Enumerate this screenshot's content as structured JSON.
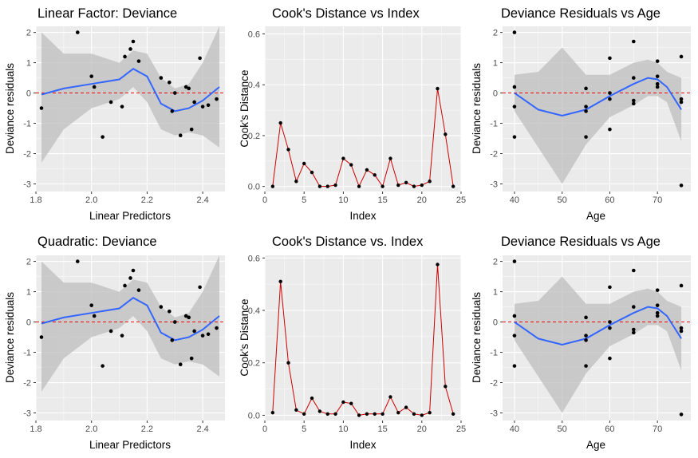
{
  "chart_data": [
    {
      "type": "scatter",
      "title": "Linear Factor: Deviance",
      "xlabel": "Linear Predictors",
      "ylabel": "Deviance residuals",
      "xlim": [
        1.8,
        2.48
      ],
      "ylim": [
        -3.25,
        2.2
      ],
      "xticks": [
        1.8,
        2.0,
        2.2,
        2.4
      ],
      "xticklabels": [
        "1.8",
        "2.0",
        "2.2",
        "2.4"
      ],
      "yticks": [
        -3,
        -2,
        -1,
        0,
        1,
        2
      ],
      "yticklabels": [
        "-3",
        "-2",
        "-1",
        "0",
        "1",
        "2"
      ],
      "points": {
        "x": [
          1.82,
          1.95,
          2.0,
          2.01,
          2.04,
          2.07,
          2.11,
          2.12,
          2.14,
          2.15,
          2.17,
          2.25,
          2.28,
          2.29,
          2.3,
          2.32,
          2.34,
          2.35,
          2.36,
          2.37,
          2.39,
          2.4,
          2.42,
          2.45
        ],
        "y": [
          -0.5,
          2.0,
          0.55,
          0.2,
          -1.45,
          -0.3,
          -0.45,
          1.2,
          1.45,
          1.7,
          1.05,
          0.5,
          0.35,
          -0.6,
          0.0,
          -1.4,
          0.2,
          0.15,
          -1.2,
          -0.3,
          1.15,
          -0.45,
          -0.4,
          -0.2
        ]
      },
      "smooth": {
        "x": [
          1.82,
          1.9,
          2.0,
          2.1,
          2.15,
          2.2,
          2.25,
          2.3,
          2.35,
          2.4,
          2.46
        ],
        "y": [
          -0.05,
          0.15,
          0.3,
          0.45,
          0.8,
          0.55,
          -0.35,
          -0.6,
          -0.5,
          -0.25,
          0.2
        ],
        "lower": [
          -2.3,
          -1.2,
          -0.5,
          -0.2,
          0.2,
          -0.3,
          -1.2,
          -1.4,
          -1.3,
          -1.4,
          -1.8
        ],
        "upper": [
          2.0,
          1.3,
          1.3,
          1.0,
          1.4,
          1.3,
          0.5,
          0.15,
          0.3,
          1.0,
          2.2
        ]
      },
      "hline": 0
    },
    {
      "type": "line",
      "title": "Cook's Distance vs Index",
      "xlabel": "Index",
      "ylabel": "Cook's Distance",
      "xlim": [
        0,
        25
      ],
      "ylim": [
        -0.02,
        0.63
      ],
      "xticks": [
        0,
        5,
        10,
        15,
        20,
        25
      ],
      "xticklabels": [
        "0",
        "5",
        "10",
        "15",
        "20",
        "25"
      ],
      "yticks": [
        0,
        0.2,
        0.4,
        0.6
      ],
      "yticklabels": [
        "0.0",
        "0.2",
        "0.4",
        "0.6"
      ],
      "x": [
        1,
        2,
        3,
        4,
        5,
        6,
        7,
        8,
        9,
        10,
        11,
        12,
        13,
        14,
        15,
        16,
        17,
        18,
        19,
        20,
        21,
        22,
        23,
        24
      ],
      "y": [
        0.0,
        0.25,
        0.145,
        0.02,
        0.09,
        0.055,
        0.0,
        0.0,
        0.005,
        0.11,
        0.085,
        0.0,
        0.065,
        0.045,
        0.0,
        0.11,
        0.005,
        0.015,
        0.0,
        0.005,
        0.02,
        0.385,
        0.205,
        0.0
      ]
    },
    {
      "type": "scatter",
      "title": "Deviance Residuals vs Age",
      "xlabel": "Age",
      "ylabel": "Deviance residuals",
      "xlim": [
        37.5,
        77
      ],
      "ylim": [
        -3.25,
        2.2
      ],
      "xticks": [
        40,
        50,
        60,
        70
      ],
      "xticklabels": [
        "40",
        "50",
        "60",
        "70"
      ],
      "yticks": [
        -3,
        -2,
        -1,
        0,
        1,
        2
      ],
      "yticklabels": [
        "-3",
        "-2",
        "-1",
        "0",
        "1",
        "2"
      ],
      "points": {
        "x": [
          40,
          40,
          40,
          40,
          55,
          55,
          55,
          55,
          60,
          60,
          60,
          60,
          65,
          65,
          65,
          65,
          70,
          70,
          70,
          70,
          75,
          75,
          75,
          75
        ],
        "y": [
          2.0,
          0.2,
          -0.45,
          -1.45,
          0.15,
          -0.45,
          -0.6,
          -1.45,
          1.15,
          0.0,
          -0.2,
          -1.2,
          1.7,
          0.5,
          -0.25,
          -0.35,
          1.05,
          0.55,
          0.3,
          0.2,
          1.2,
          -0.2,
          -0.3,
          -3.05
        ]
      },
      "smooth": {
        "x": [
          40,
          45,
          50,
          55,
          60,
          65,
          68,
          70,
          72,
          75
        ],
        "y": [
          0.0,
          -0.55,
          -0.75,
          -0.55,
          -0.1,
          0.3,
          0.5,
          0.45,
          0.2,
          -0.55
        ],
        "lower": [
          -0.6,
          -1.8,
          -3.0,
          -1.7,
          -0.8,
          -0.4,
          -0.1,
          -0.1,
          -0.3,
          -1.6
        ],
        "upper": [
          0.6,
          0.7,
          1.5,
          0.6,
          0.6,
          1.0,
          1.1,
          1.0,
          0.7,
          0.5
        ]
      },
      "hline": 0
    },
    {
      "type": "scatter",
      "title": "Quadratic: Deviance",
      "xlabel": "Linear Predictors",
      "ylabel": "Deviance residuals",
      "xlim": [
        1.8,
        2.48
      ],
      "ylim": [
        -3.25,
        2.2
      ],
      "xticks": [
        1.8,
        2.0,
        2.2,
        2.4
      ],
      "xticklabels": [
        "1.8",
        "2.0",
        "2.2",
        "2.4"
      ],
      "yticks": [
        -3,
        -2,
        -1,
        0,
        1,
        2
      ],
      "yticklabels": [
        "-3",
        "-2",
        "-1",
        "0",
        "1",
        "2"
      ],
      "points": {
        "x": [
          1.82,
          1.95,
          2.0,
          2.01,
          2.04,
          2.07,
          2.11,
          2.12,
          2.14,
          2.15,
          2.17,
          2.25,
          2.28,
          2.29,
          2.3,
          2.32,
          2.34,
          2.35,
          2.36,
          2.37,
          2.39,
          2.4,
          2.42,
          2.45
        ],
        "y": [
          -0.5,
          2.0,
          0.55,
          0.2,
          -1.45,
          -0.3,
          -0.45,
          1.2,
          1.45,
          1.7,
          1.05,
          0.5,
          0.35,
          -0.6,
          0.0,
          -1.4,
          0.2,
          0.15,
          -1.2,
          -0.3,
          1.15,
          -0.45,
          -0.4,
          -0.2
        ]
      },
      "smooth": {
        "x": [
          1.82,
          1.9,
          2.0,
          2.1,
          2.15,
          2.2,
          2.25,
          2.3,
          2.35,
          2.4,
          2.46
        ],
        "y": [
          -0.05,
          0.15,
          0.3,
          0.45,
          0.8,
          0.55,
          -0.35,
          -0.6,
          -0.5,
          -0.25,
          0.2
        ],
        "lower": [
          -2.3,
          -1.2,
          -0.5,
          -0.2,
          0.2,
          -0.3,
          -1.2,
          -1.4,
          -1.3,
          -1.4,
          -1.8
        ],
        "upper": [
          2.0,
          1.3,
          1.3,
          1.0,
          1.4,
          1.3,
          0.5,
          0.15,
          0.3,
          1.0,
          2.2
        ]
      },
      "hline": 0
    },
    {
      "type": "line",
      "title": "Cook's Distance vs. Index",
      "xlabel": "Index",
      "ylabel": "Cook's Distance",
      "xlim": [
        0,
        25
      ],
      "ylim": [
        -0.02,
        0.61
      ],
      "xticks": [
        0,
        5,
        10,
        15,
        20,
        25
      ],
      "xticklabels": [
        "0",
        "5",
        "10",
        "15",
        "20",
        "25"
      ],
      "yticks": [
        0,
        0.2,
        0.4,
        0.6
      ],
      "yticklabels": [
        "0.0",
        "0.2",
        "0.4",
        "0.6"
      ],
      "x": [
        1,
        2,
        3,
        4,
        5,
        6,
        7,
        8,
        9,
        10,
        11,
        12,
        13,
        14,
        15,
        16,
        17,
        18,
        19,
        20,
        21,
        22,
        23,
        24
      ],
      "y": [
        0.01,
        0.51,
        0.2,
        0.02,
        0.005,
        0.065,
        0.015,
        0.005,
        0.005,
        0.05,
        0.045,
        0.0,
        0.005,
        0.005,
        0.005,
        0.07,
        0.01,
        0.03,
        0.005,
        0.0,
        0.01,
        0.575,
        0.11,
        0.005
      ]
    },
    {
      "type": "scatter",
      "title": "Deviance Residuals vs Age",
      "xlabel": "Age",
      "ylabel": "Deviance residuals",
      "xlim": [
        37.5,
        77
      ],
      "ylim": [
        -3.25,
        2.2
      ],
      "xticks": [
        40,
        50,
        60,
        70
      ],
      "xticklabels": [
        "40",
        "50",
        "60",
        "70"
      ],
      "yticks": [
        -3,
        -2,
        -1,
        0,
        1,
        2
      ],
      "yticklabels": [
        "-3",
        "-2",
        "-1",
        "0",
        "1",
        "2"
      ],
      "points": {
        "x": [
          40,
          40,
          40,
          40,
          55,
          55,
          55,
          55,
          60,
          60,
          60,
          60,
          65,
          65,
          65,
          65,
          70,
          70,
          70,
          70,
          75,
          75,
          75,
          75
        ],
        "y": [
          2.0,
          0.2,
          -0.45,
          -1.45,
          0.15,
          -0.45,
          -0.6,
          -1.45,
          1.15,
          0.0,
          -0.2,
          -1.2,
          1.7,
          0.5,
          -0.25,
          -0.35,
          1.05,
          0.55,
          0.3,
          0.2,
          1.2,
          -0.2,
          -0.3,
          -3.05
        ]
      },
      "smooth": {
        "x": [
          40,
          45,
          50,
          55,
          60,
          65,
          68,
          70,
          72,
          75
        ],
        "y": [
          0.0,
          -0.55,
          -0.75,
          -0.55,
          -0.1,
          0.3,
          0.5,
          0.45,
          0.2,
          -0.55
        ],
        "lower": [
          -0.6,
          -1.8,
          -3.0,
          -1.7,
          -0.8,
          -0.4,
          -0.1,
          -0.1,
          -0.3,
          -1.6
        ],
        "upper": [
          0.6,
          0.7,
          1.5,
          0.6,
          0.6,
          1.0,
          1.1,
          1.0,
          0.7,
          0.5
        ]
      },
      "hline": 0
    }
  ],
  "colors": {
    "panel_bg": "#ebebeb",
    "grid": "#ffffff",
    "point": "#000000",
    "smooth_line": "#3366ff",
    "ribbon": "#bdbdbd",
    "reference_line": "#ff0000",
    "cooks_line": "#cc0000"
  }
}
